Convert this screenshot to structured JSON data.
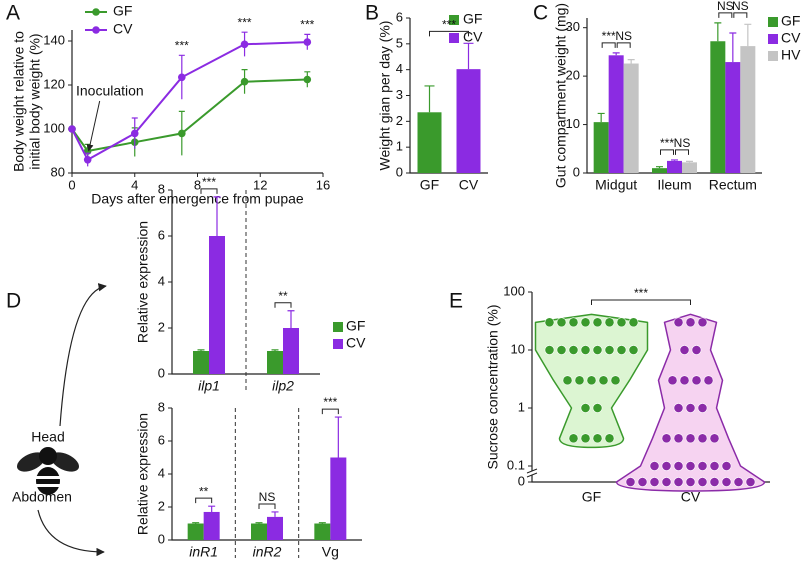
{
  "chart_data": [
    {
      "type": "line",
      "panel_label": "A",
      "x_label": "Days after emergence from pupae",
      "y_label": [
        "Body weight relative to",
        "initial body weight (%)"
      ],
      "x": [
        0,
        1,
        4,
        7,
        11,
        15
      ],
      "series": [
        {
          "name": "GF",
          "color": "#3a9a2c",
          "values": [
            100,
            90,
            94,
            98,
            121.5,
            122.5
          ],
          "errors": [
            0,
            3,
            6.5,
            10,
            5.5,
            3.5
          ]
        },
        {
          "name": "CV",
          "color": "#8b2be2",
          "values": [
            100,
            86,
            98,
            123.5,
            138.5,
            139.5
          ],
          "errors": [
            0,
            3,
            7,
            10,
            5.5,
            3.5
          ]
        }
      ],
      "significance": [
        null,
        null,
        null,
        "***",
        "***",
        "***"
      ],
      "annotation": "Inoculation",
      "xlim": [
        0,
        16
      ],
      "xticks": [
        0,
        4,
        8,
        12,
        16
      ],
      "ylim": [
        80,
        145
      ],
      "yticks": [
        80,
        100,
        120,
        140
      ],
      "legend": "upper left"
    },
    {
      "type": "bar",
      "panel_label": "B",
      "y_label": "Weight gian per day (%)",
      "categories": [
        "GF",
        "CV"
      ],
      "values": [
        2.35,
        4.02
      ],
      "errors": [
        1.02,
        1.0
      ],
      "colors": [
        "#3a9a2c",
        "#8b2be2"
      ],
      "significance": "***",
      "ylim": [
        0,
        6
      ],
      "yticks": [
        0,
        1,
        2,
        3,
        4,
        5,
        6
      ],
      "legend": "upper right"
    },
    {
      "type": "grouped-bar",
      "panel_label": "C",
      "y_label": "Gut compartment weight (mg)",
      "categories": [
        "Midgut",
        "Ileum",
        "Rectum"
      ],
      "series": [
        {
          "name": "GF",
          "color": "#3a9a2c",
          "values": [
            10.5,
            1,
            27.2
          ],
          "errors": [
            1.8,
            0.3,
            3.8
          ]
        },
        {
          "name": "CV",
          "color": "#8b2be2",
          "values": [
            24.3,
            2.5,
            22.9
          ],
          "errors": [
            0.5,
            0.2,
            6
          ]
        },
        {
          "name": "HV",
          "color": "#c4c4c4",
          "values": [
            22.6,
            2.2,
            26.2
          ],
          "errors": [
            0.8,
            0.2,
            4.5
          ]
        }
      ],
      "significance": [
        [
          "***",
          "NS"
        ],
        [
          "***",
          "NS"
        ],
        [
          "NS",
          "NS"
        ]
      ],
      "ylim": [
        0,
        32
      ],
      "yticks": [
        0,
        10,
        20,
        30
      ],
      "legend": "right"
    },
    {
      "type": "grouped-bar",
      "panel_label": "D",
      "annotation": "Head",
      "y_label": "Relative expression",
      "categories": [
        "ilp1",
        "ilp2"
      ],
      "category_italic": [
        true,
        true
      ],
      "series": [
        {
          "name": "GF",
          "color": "#3a9a2c",
          "values": [
            1,
            1
          ],
          "errors": [
            0.05,
            0.05
          ]
        },
        {
          "name": "CV",
          "color": "#8b2be2",
          "values": [
            6,
            2
          ],
          "errors": [
            1.7,
            0.75
          ]
        }
      ],
      "significance": [
        [
          "***"
        ],
        [
          "**"
        ]
      ],
      "ylim": [
        0,
        8
      ],
      "yticks": [
        0,
        2,
        4,
        6,
        8
      ],
      "legend": "right"
    },
    {
      "type": "grouped-bar",
      "annotation": "Abdomen",
      "y_label": "Relative expression",
      "categories": [
        "inR1",
        "inR2",
        "Vg"
      ],
      "category_italic": [
        true,
        true,
        false
      ],
      "series": [
        {
          "color": "#3a9a2c",
          "values": [
            1,
            1,
            1
          ],
          "errors": [
            0.05,
            0.05,
            0.05
          ]
        },
        {
          "color": "#8b2be2",
          "values": [
            1.7,
            1.4,
            5
          ],
          "errors": [
            0.35,
            0.3,
            2.45
          ]
        }
      ],
      "significance": [
        [
          "**"
        ],
        [
          "NS"
        ],
        [
          "***"
        ]
      ],
      "ylim": [
        0,
        8
      ],
      "yticks": [
        0,
        2,
        4,
        6,
        8
      ]
    },
    {
      "type": "violin",
      "panel_label": "E",
      "y_label": "Sucrose concentration (%)",
      "categories": [
        "GF",
        "CV"
      ],
      "colors": [
        "#3a9a2c",
        "#8b2ba8"
      ],
      "fill_colors": [
        "#dcf5d2",
        "#f6d3f1"
      ],
      "values": [
        [
          30,
          30,
          30,
          30,
          30,
          30,
          30,
          30,
          10,
          10,
          10,
          10,
          10,
          10,
          10,
          10,
          3,
          3,
          3,
          3,
          3,
          1,
          1,
          0.3,
          0.3,
          0.3,
          0.3
        ],
        [
          30,
          30,
          30,
          10,
          10,
          3,
          3,
          3,
          3,
          1,
          1,
          1,
          0.3,
          0.3,
          0.3,
          0.3,
          0.3,
          0.1,
          0.1,
          0.1,
          0.1,
          0.1,
          0.1,
          0.1,
          0,
          0,
          0,
          0,
          0,
          0,
          0,
          0,
          0,
          0,
          0
        ]
      ],
      "significance": "***",
      "ylim": [
        0,
        100
      ],
      "yticks": [
        0,
        0.1,
        1,
        10,
        100
      ],
      "log": true,
      "axis_break": true
    }
  ]
}
